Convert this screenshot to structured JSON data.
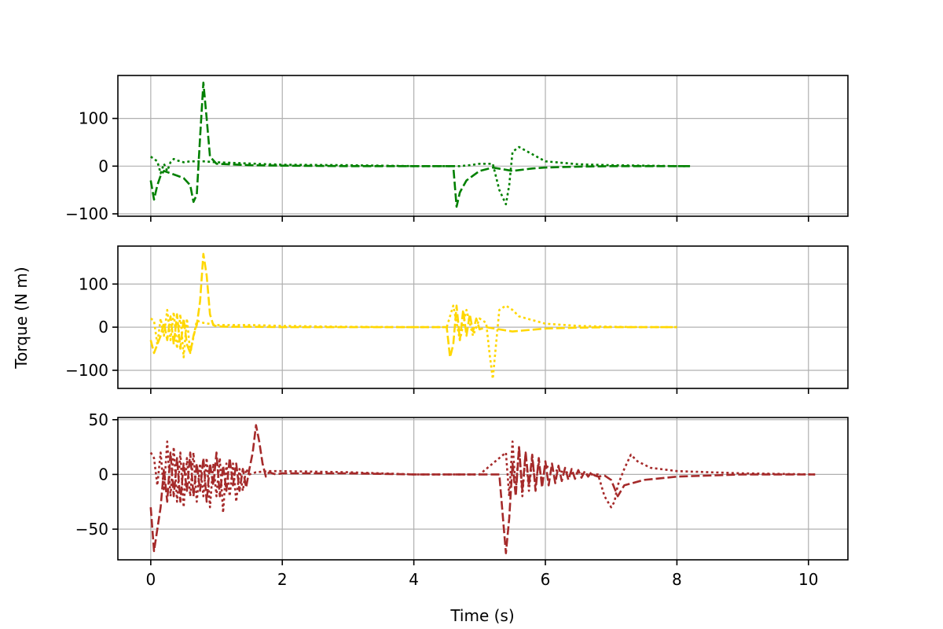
{
  "chart_data": {
    "type": "line",
    "xlabel": "Time (s)",
    "ylabel": "Torque (N m)",
    "xlim": [
      -0.5,
      10.6
    ],
    "xticks": [
      0,
      2,
      4,
      6,
      8,
      10
    ],
    "grid": true,
    "subplots": [
      {
        "name": "top",
        "color": "#008000",
        "ylim": [
          -105,
          190
        ],
        "yticks": [
          -100,
          0,
          100
        ],
        "series": [
          {
            "style": "dashed",
            "x": [
              0,
              0.05,
              0.1,
              0.15,
              0.2,
              0.3,
              0.4,
              0.5,
              0.6,
              0.65,
              0.7,
              0.75,
              0.8,
              0.85,
              0.9,
              1.0,
              1.5,
              2.0,
              3.0,
              4.0,
              4.6,
              4.65,
              4.7,
              4.8,
              4.9,
              5.0,
              5.2,
              5.5,
              5.8,
              6.0,
              6.5,
              7.0,
              7.5,
              8.0,
              8.2
            ],
            "y": [
              -30,
              -70,
              -40,
              -20,
              -10,
              -15,
              -20,
              -25,
              -40,
              -75,
              -60,
              60,
              175,
              100,
              20,
              5,
              2,
              1,
              0,
              0,
              0,
              -85,
              -55,
              -30,
              -20,
              -10,
              -3,
              -10,
              -5,
              -3,
              -1,
              0,
              0,
              0,
              0
            ]
          },
          {
            "style": "dotted",
            "x": [
              0,
              0.05,
              0.1,
              0.15,
              0.2,
              0.25,
              0.3,
              0.35,
              0.4,
              0.45,
              0.5,
              0.6,
              0.8,
              1.0,
              2.0,
              3.0,
              4.0,
              4.7,
              4.85,
              5.0,
              5.2,
              5.3,
              5.4,
              5.45,
              5.5,
              5.6,
              5.8,
              6.0,
              6.5,
              7.0,
              7.5,
              8.0,
              8.2
            ],
            "y": [
              20,
              15,
              10,
              -15,
              5,
              -10,
              8,
              15,
              12,
              10,
              8,
              10,
              10,
              8,
              3,
              2,
              0,
              0,
              2,
              5,
              5,
              -50,
              -80,
              -40,
              30,
              40,
              25,
              10,
              4,
              2,
              1,
              0,
              0
            ]
          }
        ]
      },
      {
        "name": "middle",
        "color": "#FFD700",
        "ylim": [
          -142,
          188
        ],
        "yticks": [
          -100,
          0,
          100
        ],
        "series": [
          {
            "style": "dashed",
            "x": [
              0,
              0.05,
              0.1,
              0.15,
              0.2,
              0.25,
              0.3,
              0.35,
              0.4,
              0.45,
              0.5,
              0.55,
              0.6,
              0.65,
              0.7,
              0.75,
              0.8,
              0.85,
              0.9,
              0.95,
              1.0,
              1.2,
              1.5,
              2.0,
              3.0,
              4.0,
              4.5,
              4.55,
              4.6,
              4.65,
              4.7,
              4.75,
              4.8,
              4.85,
              4.9,
              4.95,
              5.0,
              5.1,
              5.3,
              5.5,
              6.0,
              6.5,
              7.0,
              7.5,
              8.0
            ],
            "y": [
              -30,
              -60,
              -40,
              -20,
              10,
              -30,
              25,
              -40,
              30,
              -50,
              20,
              -40,
              -60,
              -20,
              5,
              60,
              170,
              120,
              30,
              5,
              2,
              1,
              1,
              0,
              0,
              0,
              0,
              -70,
              -40,
              50,
              -30,
              40,
              -20,
              30,
              -10,
              20,
              -5,
              0,
              -5,
              -10,
              -3,
              -1,
              0,
              0,
              0
            ]
          },
          {
            "style": "dotted",
            "x": [
              0,
              0.05,
              0.1,
              0.15,
              0.2,
              0.25,
              0.3,
              0.35,
              0.4,
              0.45,
              0.5,
              0.55,
              0.6,
              0.7,
              0.8,
              1.0,
              1.5,
              2.0,
              3.0,
              4.0,
              4.5,
              4.6,
              4.7,
              4.8,
              4.9,
              5.0,
              5.1,
              5.15,
              5.2,
              5.25,
              5.3,
              5.4,
              5.5,
              5.6,
              6.0,
              6.5,
              7.0,
              7.5,
              8.0
            ],
            "y": [
              20,
              15,
              -40,
              20,
              -20,
              40,
              -30,
              35,
              -50,
              30,
              -70,
              20,
              -60,
              15,
              10,
              5,
              5,
              3,
              1,
              0,
              0,
              50,
              -30,
              40,
              -20,
              20,
              10,
              -60,
              -120,
              -40,
              40,
              50,
              40,
              25,
              8,
              3,
              1,
              0,
              0
            ]
          }
        ]
      },
      {
        "name": "bottom",
        "color": "#A52A2A",
        "ylim": [
          -78,
          52
        ],
        "yticks": [
          -50,
          0,
          50
        ],
        "series": [
          {
            "style": "dashed",
            "x": [
              0,
              0.05,
              0.1,
              0.15,
              0.2,
              0.25,
              0.3,
              0.35,
              0.4,
              0.45,
              0.5,
              0.55,
              0.6,
              0.65,
              0.7,
              0.75,
              0.8,
              0.85,
              0.9,
              0.95,
              1.0,
              1.05,
              1.1,
              1.15,
              1.2,
              1.25,
              1.3,
              1.35,
              1.4,
              1.45,
              1.5,
              1.55,
              1.6,
              1.65,
              1.7,
              1.75,
              1.8,
              1.9,
              2.0,
              3.0,
              4.0,
              5.0,
              5.3,
              5.4,
              5.45,
              5.5,
              5.55,
              5.6,
              5.65,
              5.7,
              5.75,
              5.8,
              5.85,
              5.9,
              5.95,
              6.0,
              6.05,
              6.1,
              6.15,
              6.2,
              6.25,
              6.3,
              6.35,
              6.4,
              6.45,
              6.5,
              6.55,
              6.6,
              6.65,
              6.7,
              6.75,
              6.8,
              6.9,
              7.0,
              7.1,
              7.2,
              7.5,
              8.0,
              9.0,
              10.1
            ],
            "y": [
              -30,
              -70,
              -50,
              -30,
              5,
              -25,
              20,
              -20,
              15,
              -25,
              10,
              -15,
              20,
              -20,
              10,
              -15,
              15,
              -25,
              10,
              -10,
              20,
              -20,
              8,
              -15,
              15,
              -10,
              10,
              -15,
              5,
              -12,
              5,
              20,
              45,
              30,
              10,
              -2,
              2,
              0,
              1,
              1,
              0,
              0,
              0,
              -72,
              -40,
              10,
              -20,
              25,
              -15,
              20,
              -10,
              18,
              -15,
              15,
              -12,
              12,
              -10,
              10,
              -8,
              8,
              -6,
              6,
              -5,
              5,
              -4,
              4,
              -3,
              3,
              -2,
              2,
              -1,
              -2,
              -1,
              -5,
              -20,
              -10,
              -5,
              -2,
              0,
              0
            ]
          },
          {
            "style": "dotted",
            "x": [
              0,
              0.05,
              0.1,
              0.15,
              0.2,
              0.25,
              0.3,
              0.35,
              0.4,
              0.45,
              0.5,
              0.55,
              0.6,
              0.65,
              0.7,
              0.75,
              0.8,
              0.85,
              0.9,
              0.95,
              1.0,
              1.05,
              1.1,
              1.15,
              1.2,
              1.25,
              1.3,
              1.35,
              1.4,
              1.45,
              1.5,
              1.6,
              1.8,
              2.0,
              3.0,
              4.0,
              5.0,
              5.4,
              5.45,
              5.5,
              5.55,
              5.6,
              5.65,
              5.7,
              5.75,
              5.8,
              5.85,
              5.9,
              5.95,
              6.0,
              6.1,
              6.2,
              6.3,
              6.4,
              6.5,
              6.6,
              6.7,
              6.8,
              6.9,
              7.0,
              7.05,
              7.1,
              7.2,
              7.3,
              7.4,
              7.6,
              8.0,
              9.0,
              10.1
            ],
            "y": [
              20,
              15,
              -10,
              20,
              -15,
              30,
              -20,
              25,
              -25,
              20,
              -30,
              15,
              -20,
              20,
              -25,
              10,
              -20,
              15,
              -30,
              10,
              -20,
              15,
              -35,
              10,
              -20,
              10,
              -25,
              5,
              -15,
              5,
              0,
              2,
              3,
              3,
              2,
              0,
              0,
              20,
              -20,
              30,
              -15,
              25,
              -20,
              20,
              -15,
              15,
              -10,
              10,
              -8,
              8,
              5,
              3,
              2,
              1,
              1,
              0,
              0,
              0,
              -20,
              -30,
              -25,
              -10,
              5,
              18,
              12,
              6,
              3,
              1,
              0
            ]
          }
        ]
      }
    ]
  }
}
